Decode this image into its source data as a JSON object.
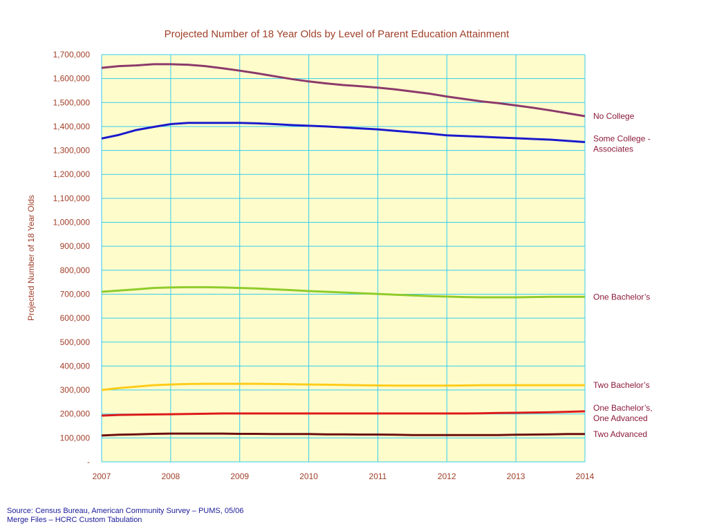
{
  "colors": {
    "text_accent": "#a0402a",
    "series_label": "#8b1a3a",
    "plot_bg": "#fffccc",
    "grid": "#33ccee",
    "no_college": "#8b3a6a",
    "some_college": "#1a1acc",
    "one_bachelors": "#8fcc2a",
    "two_bachelors": "#ffcc1a",
    "one_bach_one_adv": "#dd1a1a",
    "two_advanced": "#6b0f0f",
    "source_text": "#1a1a99"
  },
  "source": {
    "line1": "Source: Census Bureau, American Community Survey – PUMS, 05/06",
    "line2": "Merge Files – HCRC Custom Tabulation"
  },
  "chart_data": {
    "type": "line",
    "title": "Projected Number of 18 Year Olds by Level of Parent Education Attainment",
    "xlabel": "",
    "ylabel": "Projected Number of 18 Year Olds",
    "xlim": [
      2007,
      2014
    ],
    "ylim": [
      0,
      1700000
    ],
    "grid": true,
    "legend": "labels at right end of each line",
    "x_tick_labels": [
      "2007",
      "2008",
      "2009",
      "2010",
      "2011",
      "2012",
      "2013",
      "2014"
    ],
    "y_ticks": [
      0,
      100000,
      200000,
      300000,
      400000,
      500000,
      600000,
      700000,
      800000,
      900000,
      1000000,
      1100000,
      1200000,
      1300000,
      1400000,
      1500000,
      1600000,
      1700000
    ],
    "y_tick_labels": [
      "-",
      "100,000",
      "200,000",
      "300,000",
      "400,000",
      "500,000",
      "600,000",
      "700,000",
      "800,000",
      "900,000",
      "1,000,000",
      "1,100,000",
      "1,200,000",
      "1,300,000",
      "1,400,000",
      "1,500,000",
      "1,600,000",
      "1,700,000"
    ],
    "x": [
      2007,
      2007.25,
      2007.5,
      2007.75,
      2008,
      2008.25,
      2008.5,
      2008.75,
      2009,
      2009.25,
      2009.5,
      2009.75,
      2010,
      2010.25,
      2010.5,
      2010.75,
      2011,
      2011.25,
      2011.5,
      2011.75,
      2012,
      2012.25,
      2012.5,
      2012.75,
      2013,
      2013.25,
      2013.5,
      2013.75,
      2014
    ],
    "series": [
      {
        "name": "No College",
        "color_key": "no_college",
        "values": [
          1645000,
          1652000,
          1655000,
          1660000,
          1660000,
          1658000,
          1652000,
          1643000,
          1633000,
          1622000,
          1610000,
          1598000,
          1588000,
          1580000,
          1573000,
          1568000,
          1562000,
          1555000,
          1546000,
          1537000,
          1525000,
          1515000,
          1505000,
          1497000,
          1488000,
          1478000,
          1467000,
          1455000,
          1443000
        ]
      },
      {
        "name": "Some College -",
        "name_line2": "Associates",
        "color_key": "some_college",
        "values": [
          1350000,
          1365000,
          1385000,
          1398000,
          1410000,
          1415000,
          1415000,
          1415000,
          1415000,
          1413000,
          1410000,
          1406000,
          1403000,
          1400000,
          1396000,
          1392000,
          1388000,
          1382000,
          1376000,
          1370000,
          1363000,
          1360000,
          1357000,
          1354000,
          1351000,
          1348000,
          1345000,
          1340000,
          1335000
        ]
      },
      {
        "name": "One Bachelor’s",
        "color_key": "one_bachelors",
        "values": [
          710000,
          715000,
          720000,
          726000,
          728000,
          729000,
          729000,
          728000,
          726000,
          724000,
          720000,
          717000,
          713000,
          710000,
          707000,
          704000,
          701000,
          698000,
          695000,
          692000,
          690000,
          688000,
          687000,
          687000,
          687000,
          688000,
          689000,
          689000,
          689000
        ]
      },
      {
        "name": "Two Bachelor’s",
        "color_key": "two_bachelors",
        "values": [
          300000,
          308000,
          314000,
          320000,
          323000,
          325000,
          326000,
          326000,
          326000,
          326000,
          325000,
          324000,
          323000,
          322000,
          321000,
          320000,
          319000,
          318000,
          318000,
          318000,
          318000,
          319000,
          320000,
          320000,
          320000,
          320000,
          320000,
          320000,
          320000
        ]
      },
      {
        "name": "One Bachelor’s,",
        "name_line2": "One Advanced",
        "color_key": "one_bach_one_adv",
        "values": [
          193000,
          196000,
          197000,
          198000,
          199000,
          200000,
          201000,
          202000,
          202000,
          202000,
          202000,
          202000,
          202000,
          202000,
          202000,
          202000,
          202000,
          202000,
          202000,
          202000,
          202000,
          202000,
          203000,
          204000,
          205000,
          206000,
          207000,
          209000,
          211000
        ]
      },
      {
        "name": "Two Advanced",
        "color_key": "two_advanced",
        "values": [
          110000,
          113000,
          115000,
          117000,
          118000,
          118000,
          118000,
          118000,
          117000,
          117000,
          116000,
          116000,
          116000,
          115000,
          115000,
          114000,
          114000,
          113000,
          112000,
          112000,
          112000,
          112000,
          112000,
          112000,
          113000,
          114000,
          115000,
          116000,
          116000
        ]
      }
    ]
  }
}
